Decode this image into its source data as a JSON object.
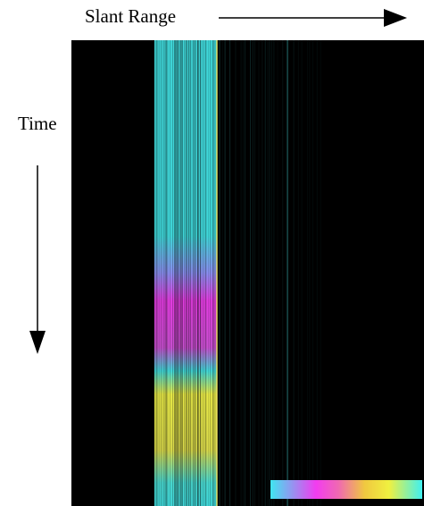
{
  "labels": {
    "x_axis": "Slant Range",
    "y_axis": "Time"
  }
}
